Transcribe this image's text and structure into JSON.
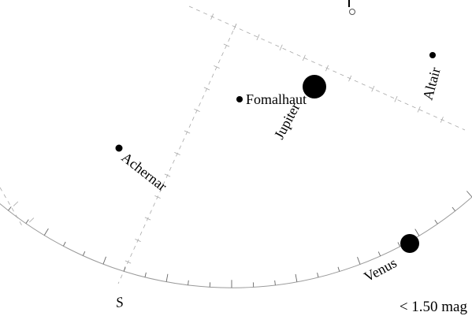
{
  "objects": [
    {
      "id": "jupiter",
      "name": "Jupiter",
      "kind": "planet"
    },
    {
      "id": "venus",
      "name": "Venus",
      "kind": "planet"
    },
    {
      "id": "fomalhaut",
      "name": "Fomalhaut",
      "kind": "star"
    },
    {
      "id": "altair",
      "name": "Altair",
      "kind": "star"
    },
    {
      "id": "achernar",
      "name": "Achernar",
      "kind": "star"
    }
  ],
  "compass": {
    "south": "S"
  },
  "magnitude_limit": "< 1.50 mag"
}
